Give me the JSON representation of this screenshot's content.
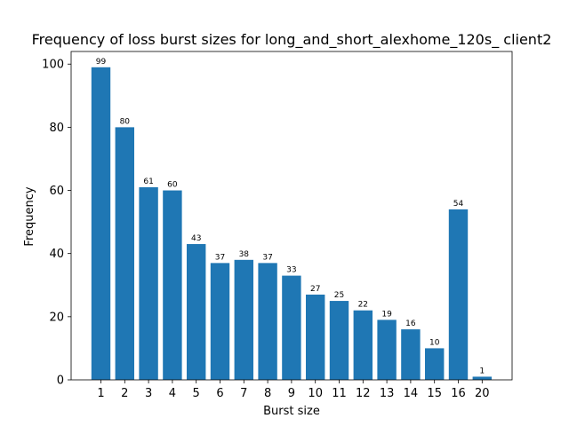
{
  "chart_data": {
    "type": "bar",
    "title": "Frequency of loss burst sizes for long_and_short_alexhome_120s_ client2",
    "xlabel": "Burst size",
    "ylabel": "Frequency",
    "categories": [
      "1",
      "2",
      "3",
      "4",
      "5",
      "6",
      "7",
      "8",
      "9",
      "10",
      "11",
      "12",
      "13",
      "14",
      "15",
      "16",
      "20"
    ],
    "values": [
      99,
      80,
      61,
      60,
      43,
      37,
      38,
      37,
      33,
      27,
      25,
      22,
      19,
      16,
      10,
      54,
      1
    ],
    "data_labels": [
      "99",
      "80",
      "61",
      "60",
      "43",
      "37",
      "38",
      "37",
      "33",
      "27",
      "25",
      "22",
      "19",
      "16",
      "10",
      "54",
      "1"
    ],
    "ylim": [
      0,
      104
    ],
    "yticks": [
      0,
      20,
      40,
      60,
      80,
      100
    ],
    "ytick_labels": [
      "0",
      "20",
      "40",
      "60",
      "80",
      "100"
    ],
    "grid": false,
    "legend": "none",
    "bar_color": "#1f77b4"
  }
}
